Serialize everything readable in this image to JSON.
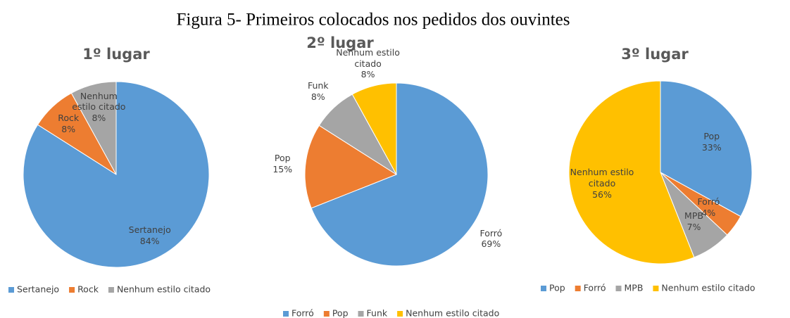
{
  "title": "Figura 5- Primeiros colocados nos pedidos dos ouvintes",
  "chart_data": [
    {
      "type": "pie",
      "title": "1º lugar",
      "categories": [
        "Sertanejo",
        "Rock",
        "Nenhum estilo citado"
      ],
      "values": [
        84,
        8,
        8
      ],
      "value_labels": [
        "84%",
        "8%",
        "8%"
      ],
      "colors": [
        "#5b9bd5",
        "#ed7d31",
        "#a5a5a5"
      ]
    },
    {
      "type": "pie",
      "title": "2º lugar",
      "categories": [
        "Forró",
        "Pop",
        "Funk",
        "Nenhum estilo citado"
      ],
      "values": [
        69,
        15,
        8,
        8
      ],
      "value_labels": [
        "69%",
        "15%",
        "8%",
        "8%"
      ],
      "colors": [
        "#5b9bd5",
        "#ed7d31",
        "#a5a5a5",
        "#ffc000"
      ]
    },
    {
      "type": "pie",
      "title": "3º lugar",
      "categories": [
        "Pop",
        "Forró",
        "MPB",
        "Nenhum estilo citado"
      ],
      "values": [
        33,
        4,
        7,
        56
      ],
      "value_labels": [
        "33%",
        "4%",
        "7%",
        "56%"
      ],
      "colors": [
        "#5b9bd5",
        "#ed7d31",
        "#a5a5a5",
        "#ffc000"
      ]
    }
  ]
}
